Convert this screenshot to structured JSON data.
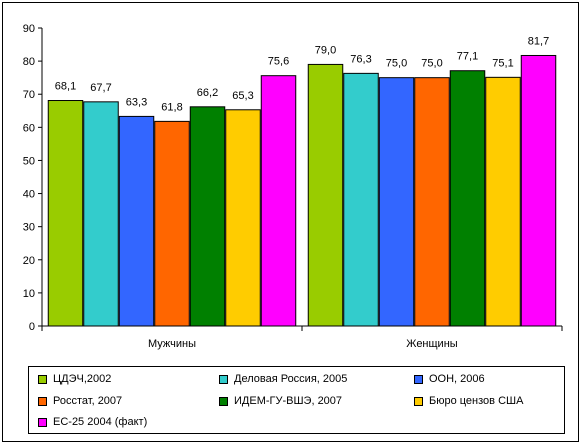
{
  "chart_data": {
    "type": "bar",
    "categories": [
      "Мужчины",
      "Женщины"
    ],
    "ylim": [
      0,
      90
    ],
    "yticks": [
      0,
      10,
      20,
      30,
      40,
      50,
      60,
      70,
      80,
      90
    ],
    "grid": false,
    "legend_position": "bottom",
    "series": [
      {
        "name": "ЦДЭЧ,2002",
        "color": "#99CC00",
        "values": [
          68.1,
          79.0
        ],
        "labels": [
          "68,1",
          "79,0"
        ]
      },
      {
        "name": "Деловая Россия, 2005",
        "color": "#33CCCC",
        "values": [
          67.7,
          76.3
        ],
        "labels": [
          "67,7",
          "76,3"
        ]
      },
      {
        "name": "ООН, 2006",
        "color": "#3366FF",
        "values": [
          63.3,
          75.0
        ],
        "labels": [
          "63,3",
          "75,0"
        ]
      },
      {
        "name": "Росстат, 2007",
        "color": "#FF6600",
        "values": [
          61.8,
          75.0
        ],
        "labels": [
          "61,8",
          "75,0"
        ]
      },
      {
        "name": "ИДЕМ-ГУ-ВШЭ, 2007",
        "color": "#008000",
        "values": [
          66.2,
          77.1
        ],
        "labels": [
          "66,2",
          "77,1"
        ]
      },
      {
        "name": "Бюро цензов  США",
        "color": "#FFCC00",
        "values": [
          65.3,
          75.1
        ],
        "labels": [
          "65,3",
          "75,1"
        ]
      },
      {
        "name": "ЕС-25  2004 (факт)",
        "color": "#FF00FF",
        "values": [
          75.6,
          81.7
        ],
        "labels": [
          "75,6",
          "81,7"
        ]
      }
    ]
  }
}
